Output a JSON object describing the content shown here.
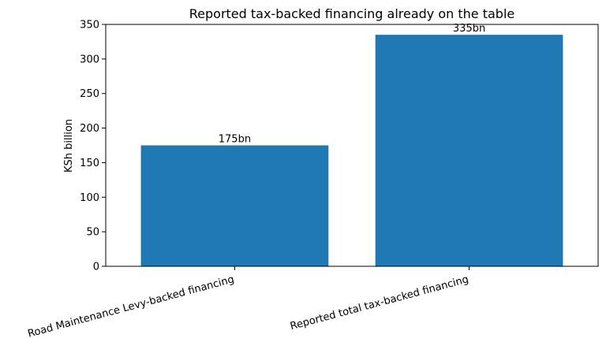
{
  "chart_data": {
    "type": "bar",
    "title": "Reported tax-backed financing already on the table",
    "xlabel": "",
    "ylabel": "KSh billion",
    "categories": [
      "Road Maintenance Levy-backed financing",
      "Reported total tax-backed financing"
    ],
    "values": [
      175,
      335
    ],
    "data_labels": [
      "175bn",
      "335bn"
    ],
    "ylim": [
      0,
      350
    ],
    "yticks": [
      0,
      50,
      100,
      150,
      200,
      250,
      300,
      350
    ],
    "ytick_labels": [
      "0",
      "50",
      "100",
      "150",
      "200",
      "250",
      "300",
      "350"
    ],
    "bar_color": "#1f77b4",
    "grid": false,
    "legend": "none"
  }
}
